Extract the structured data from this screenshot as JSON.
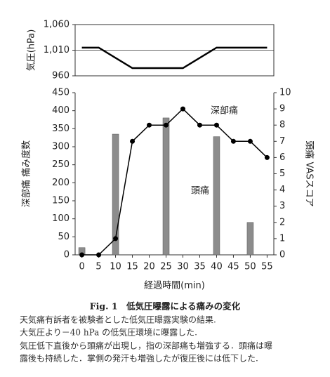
{
  "chart_data": [
    {
      "type": "line",
      "ylabel": "気圧(hPa)",
      "xlim": [
        -2,
        57
      ],
      "ylim": [
        960,
        1060
      ],
      "yticks": [
        960,
        {
          "value": 1010,
          "label": "1,010"
        },
        {
          "value": 1060,
          "label": "1,060"
        }
      ],
      "grid": true,
      "series": [
        {
          "x": [
            0,
            5,
            15,
            30,
            40,
            55
          ],
          "values": [
            1015,
            1015,
            975,
            975,
            1015,
            1015
          ],
          "color": "#000000"
        }
      ]
    },
    {
      "type": "combo",
      "xlabel": "経過時間(min)",
      "ylabel": "深部痛 痛み度数",
      "y2label": "頭痛 VASスコア",
      "xlim": [
        -2,
        57
      ],
      "xticks": [
        0,
        5,
        10,
        15,
        20,
        25,
        30,
        35,
        40,
        45,
        50,
        55
      ],
      "ylim": [
        0,
        450
      ],
      "yticks": [
        0,
        50,
        100,
        150,
        200,
        250,
        300,
        350,
        400,
        450
      ],
      "y2lim": [
        0,
        10
      ],
      "y2ticks": [
        0,
        1,
        2,
        3,
        4,
        5,
        6,
        7,
        8,
        9,
        10
      ],
      "series": [
        {
          "name": "深部痛",
          "type": "bar",
          "color": "#8c8c8c",
          "x": [
            0,
            10,
            25,
            40,
            50
          ],
          "values": [
            20,
            335,
            380,
            328,
            90
          ]
        },
        {
          "name": "頭痛",
          "type": "line",
          "axis": "y2",
          "color": "#000000",
          "x": [
            0,
            5,
            10,
            15,
            20,
            25,
            30,
            35,
            40,
            45,
            50,
            55
          ],
          "values": [
            0,
            0,
            1,
            7,
            8,
            8,
            9,
            8,
            8,
            7,
            7,
            6
          ]
        }
      ]
    }
  ],
  "caption": {
    "title": "Fig. 1　低気圧曝露による痛みの変化",
    "lines": [
      "天気痛有訴者を被験者とした低気圧曝露実験の結果.",
      "大気圧より－40 hPa の低気圧環境に曝露した.",
      "気圧低下直後から頭痛が出現し，指の深部痛も増強する．頭痛は曝",
      "露後も持続した．掌側の発汗も増強したが復圧後には低下した."
    ]
  }
}
